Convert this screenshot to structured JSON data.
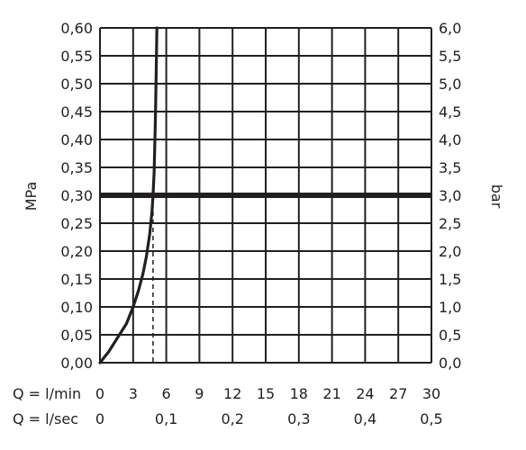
{
  "chart_data": {
    "type": "line",
    "title": "",
    "y_left": {
      "label": "MPa",
      "ylim": [
        0,
        0.6
      ],
      "ticks": [
        0,
        0.05,
        0.1,
        0.15,
        0.2,
        0.25,
        0.3,
        0.35,
        0.4,
        0.45,
        0.5,
        0.55,
        0.6
      ],
      "tick_labels": [
        "0,00",
        "0,05",
        "0,10",
        "0,15",
        "0,20",
        "0,25",
        "0,30",
        "0,35",
        "0,40",
        "0,45",
        "0,50",
        "0,55",
        "0,60"
      ]
    },
    "y_right": {
      "label": "bar",
      "ylim": [
        0,
        6
      ],
      "tick_labels": [
        "0,0",
        "0,5",
        "1,0",
        "1,5",
        "2,0",
        "2,5",
        "3,0",
        "3,5",
        "4,0",
        "4,5",
        "5,0",
        "5,5",
        "6,0"
      ]
    },
    "x_lmin": {
      "label": "Q = l/min",
      "xlim": [
        0,
        30
      ],
      "ticks": [
        0,
        3,
        6,
        9,
        12,
        15,
        18,
        21,
        24,
        27,
        30
      ],
      "tick_labels": [
        "0",
        "3",
        "6",
        "9",
        "12",
        "15",
        "18",
        "21",
        "24",
        "27",
        "30"
      ]
    },
    "x_lsec": {
      "label": "Q = l/sec",
      "ticks": [
        0,
        0.1,
        0.2,
        0.3,
        0.4,
        0.5
      ],
      "tick_labels": [
        "0",
        "0,1",
        "0,2",
        "0,3",
        "0,4",
        "0,5"
      ]
    },
    "grid": true,
    "series": [
      {
        "x": [
          0,
          0.8,
          1.6,
          2.4,
          3.0,
          3.5,
          3.9,
          4.2,
          4.5,
          4.7,
          4.8,
          4.9,
          4.95,
          5.0,
          5.05,
          5.1,
          5.15
        ],
        "y": [
          0,
          0.02,
          0.045,
          0.07,
          0.1,
          0.13,
          0.16,
          0.19,
          0.23,
          0.27,
          0.3,
          0.34,
          0.38,
          0.42,
          0.47,
          0.54,
          0.6
        ],
        "color": "#231f20"
      }
    ],
    "reference_lines": [
      {
        "orientation": "horizontal",
        "y": 0.3,
        "style": "thick",
        "color": "#231f20"
      },
      {
        "orientation": "vertical",
        "x": 4.8,
        "y_max": 0.3,
        "style": "dashed",
        "color": "#231f20"
      }
    ]
  }
}
